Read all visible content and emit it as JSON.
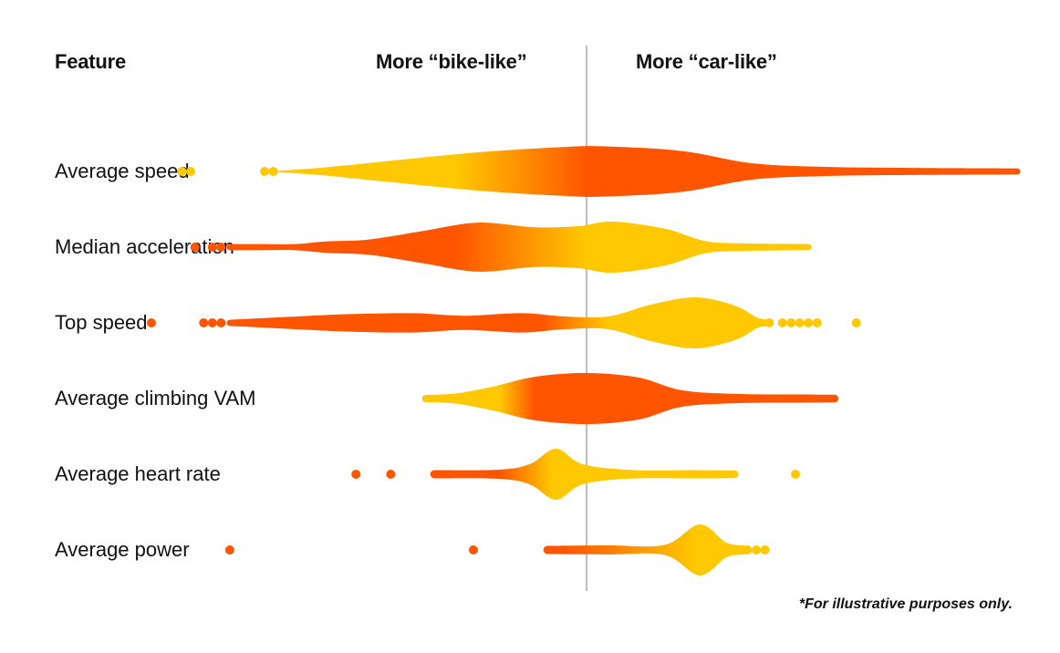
{
  "headers": {
    "feature": "Feature",
    "bike": "More “bike-like”",
    "car": "More “car-like”"
  },
  "footnote": "*For illustrative purposes only.",
  "colors": {
    "orange": "#ff5500",
    "yellow": "#ffc800",
    "divider": "#bdbdbd"
  },
  "chart_data": {
    "type": "violin",
    "orientation": "horizontal",
    "title": "",
    "xlabel": "",
    "ylabel": "",
    "x_range": [
      -1,
      1
    ],
    "divider_at": 0,
    "grid": false,
    "categories": [
      "Average speed",
      "Median acceleration",
      "Top speed",
      "Average climbing VAM",
      "Average heart rate",
      "Average power"
    ],
    "series": [
      {
        "feature": "Average speed",
        "color_stops": [
          [
            -0.93,
            "yellow"
          ],
          [
            -0.3,
            "yellow"
          ],
          [
            0,
            "orange"
          ],
          [
            1,
            "orange"
          ]
        ],
        "outliers": [
          [
            -0.93,
            "yellow"
          ],
          [
            -0.91,
            "yellow"
          ],
          [
            -0.74,
            "yellow"
          ],
          [
            -0.72,
            "yellow"
          ]
        ],
        "profile": [
          [
            -0.71,
            0.02
          ],
          [
            -0.6,
            0.16
          ],
          [
            -0.45,
            0.42
          ],
          [
            -0.25,
            0.75
          ],
          [
            -0.05,
            0.96
          ],
          [
            0.05,
            0.98
          ],
          [
            0.22,
            0.8
          ],
          [
            0.38,
            0.32
          ],
          [
            0.55,
            0.18
          ],
          [
            0.75,
            0.14
          ],
          [
            0.99,
            0.12
          ]
        ]
      },
      {
        "feature": "Median acceleration",
        "color_stops": [
          [
            -1,
            "orange"
          ],
          [
            -0.3,
            "orange"
          ],
          [
            0,
            "yellow"
          ],
          [
            1,
            "yellow"
          ]
        ],
        "outliers": [
          [
            -0.9,
            "orange"
          ],
          [
            -0.86,
            "orange"
          ],
          [
            -0.84,
            "orange"
          ]
        ],
        "profile": [
          [
            -0.82,
            0.12
          ],
          [
            -0.75,
            0.12
          ],
          [
            -0.67,
            0.12
          ],
          [
            -0.6,
            0.22
          ],
          [
            -0.5,
            0.3
          ],
          [
            -0.38,
            0.62
          ],
          [
            -0.25,
            0.96
          ],
          [
            -0.12,
            0.78
          ],
          [
            -0.02,
            0.82
          ],
          [
            0.06,
            1.0
          ],
          [
            0.18,
            0.72
          ],
          [
            0.27,
            0.25
          ],
          [
            0.35,
            0.15
          ],
          [
            0.51,
            0.12
          ]
        ]
      },
      {
        "feature": "Top speed",
        "color_stops": [
          [
            -1,
            "orange"
          ],
          [
            -0.1,
            "orange"
          ],
          [
            0.05,
            "yellow"
          ],
          [
            1,
            "yellow"
          ]
        ],
        "outliers": [
          [
            -1.0,
            "orange"
          ],
          [
            -0.88,
            "orange"
          ],
          [
            -0.86,
            "orange"
          ],
          [
            -0.84,
            "orange"
          ],
          [
            0.42,
            "yellow"
          ],
          [
            0.45,
            "yellow"
          ],
          [
            0.47,
            "yellow"
          ],
          [
            0.49,
            "yellow"
          ],
          [
            0.51,
            "yellow"
          ],
          [
            0.53,
            "yellow"
          ],
          [
            0.62,
            "yellow"
          ]
        ],
        "profile": [
          [
            -0.82,
            0.12
          ],
          [
            -0.7,
            0.22
          ],
          [
            -0.55,
            0.34
          ],
          [
            -0.4,
            0.38
          ],
          [
            -0.28,
            0.28
          ],
          [
            -0.15,
            0.38
          ],
          [
            -0.05,
            0.25
          ],
          [
            0.05,
            0.25
          ],
          [
            0.15,
            0.72
          ],
          [
            0.25,
            1.0
          ],
          [
            0.34,
            0.68
          ],
          [
            0.39,
            0.22
          ],
          [
            0.41,
            0.14
          ]
        ]
      },
      {
        "feature": "Average climbing VAM",
        "color_stops": [
          [
            -1,
            "yellow"
          ],
          [
            -0.2,
            "yellow"
          ],
          [
            -0.12,
            "orange"
          ],
          [
            1,
            "orange"
          ]
        ],
        "outliers": [],
        "profile": [
          [
            -0.37,
            0.14
          ],
          [
            -0.3,
            0.2
          ],
          [
            -0.22,
            0.45
          ],
          [
            -0.12,
            0.85
          ],
          [
            0.0,
            1.0
          ],
          [
            0.12,
            0.82
          ],
          [
            0.22,
            0.32
          ],
          [
            0.35,
            0.18
          ],
          [
            0.5,
            0.16
          ],
          [
            0.57,
            0.15
          ]
        ]
      },
      {
        "feature": "Average heart rate",
        "color_stops": [
          [
            -1,
            "orange"
          ],
          [
            -0.2,
            "orange"
          ],
          [
            -0.08,
            "yellow"
          ],
          [
            1,
            "yellow"
          ]
        ],
        "outliers": [
          [
            -0.53,
            "orange"
          ],
          [
            -0.45,
            "orange"
          ],
          [
            0.48,
            "yellow"
          ]
        ],
        "profile": [
          [
            -0.35,
            0.16
          ],
          [
            -0.2,
            0.18
          ],
          [
            -0.13,
            0.4
          ],
          [
            -0.07,
            1.0
          ],
          [
            -0.01,
            0.4
          ],
          [
            0.1,
            0.17
          ],
          [
            0.25,
            0.16
          ],
          [
            0.34,
            0.15
          ]
        ]
      },
      {
        "feature": "Average power",
        "color_stops": [
          [
            -1,
            "orange"
          ],
          [
            -0.05,
            "orange"
          ],
          [
            0.25,
            "yellow"
          ],
          [
            1,
            "yellow"
          ]
        ],
        "outliers": [
          [
            -0.82,
            "orange"
          ],
          [
            -0.26,
            "orange"
          ],
          [
            0.37,
            "yellow"
          ],
          [
            0.39,
            "yellow"
          ],
          [
            0.41,
            "yellow"
          ]
        ],
        "profile": [
          [
            -0.09,
            0.16
          ],
          [
            0.05,
            0.18
          ],
          [
            0.18,
            0.2
          ],
          [
            0.26,
            1.0
          ],
          [
            0.32,
            0.3
          ],
          [
            0.36,
            0.18
          ]
        ]
      }
    ]
  }
}
